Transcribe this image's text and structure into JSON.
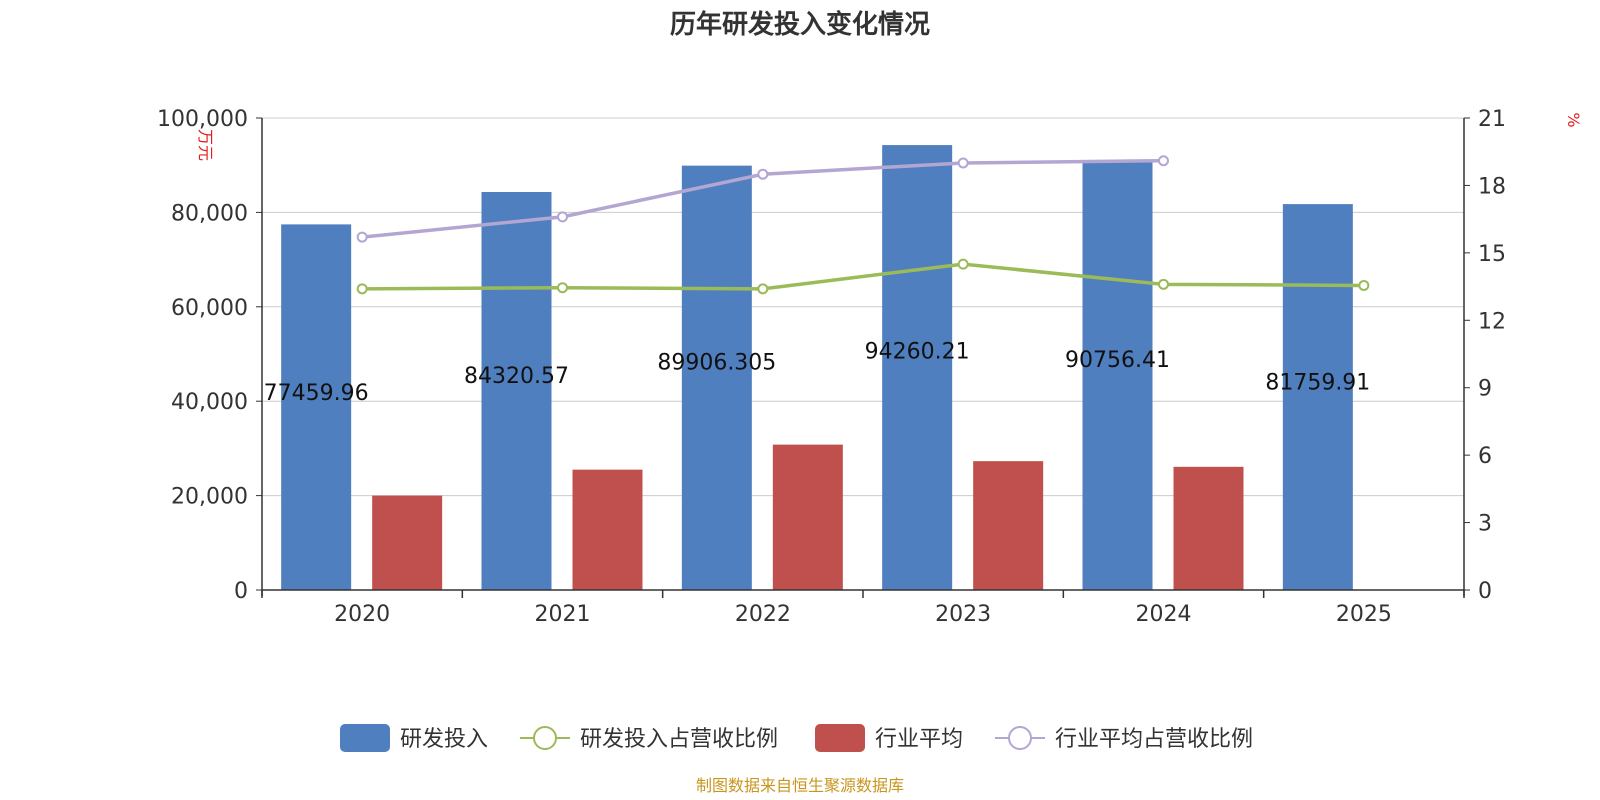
{
  "chart_data": {
    "type": "bar",
    "title": "历年研发投入变化情况",
    "categories": [
      "2020",
      "2021",
      "2022",
      "2023",
      "2024",
      "2025"
    ],
    "ylabel": "万元",
    "y2label": "%",
    "ylim": [
      0,
      100000
    ],
    "y2lim": [
      0,
      21
    ],
    "yticks": [
      "0",
      "20,000",
      "40,000",
      "60,000",
      "80,000",
      "100,000"
    ],
    "y2ticks": [
      "0",
      "3",
      "6",
      "9",
      "12",
      "15",
      "18",
      "21"
    ],
    "grid": true,
    "legend_position": "bottom",
    "series": [
      {
        "name": "研发投入",
        "kind": "bar",
        "axis": "left",
        "color": "#4f7fbf",
        "values": [
          77459.96,
          84320.57,
          89906.305,
          94260.21,
          90756.41,
          81759.91
        ],
        "labels": [
          "77459.96",
          "84320.57",
          "89906.305",
          "94260.21",
          "90756.41",
          "81759.91"
        ]
      },
      {
        "name": "研发投入占营收比例",
        "kind": "line",
        "axis": "right",
        "color": "#9bbb59",
        "values": [
          13.4,
          13.45,
          13.4,
          14.5,
          13.6,
          13.55
        ]
      },
      {
        "name": "行业平均",
        "kind": "bar",
        "axis": "left",
        "color": "#c0504d",
        "values": [
          20000,
          25500,
          30800,
          27300,
          26100,
          null
        ]
      },
      {
        "name": "行业平均占营收比例",
        "kind": "line",
        "axis": "right",
        "color": "#b3a6d3",
        "values": [
          15.7,
          16.6,
          18.5,
          19.0,
          19.1,
          null
        ]
      }
    ],
    "source": "制图数据来自恒生聚源数据库"
  }
}
